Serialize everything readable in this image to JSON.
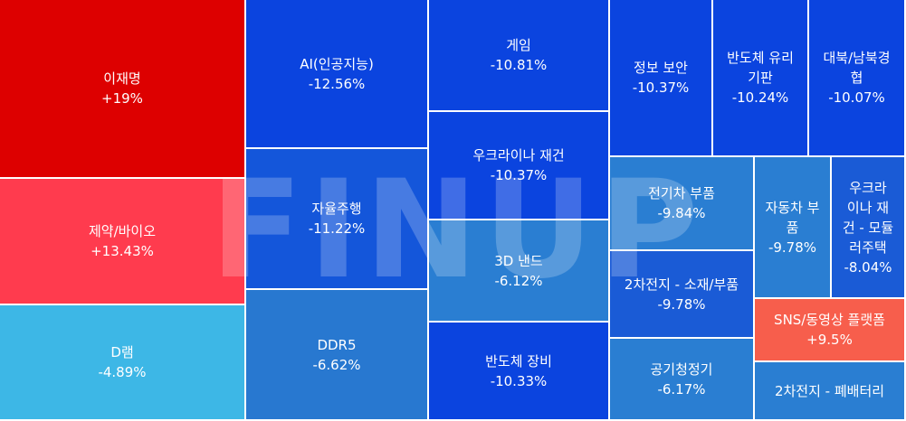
{
  "brand": {
    "watermark": "FINUP"
  },
  "chart_data": {
    "type": "treemap",
    "items": [
      {
        "label": "이재명",
        "change": "+19%",
        "color": "#dd0000"
      },
      {
        "label": "제약/바이오",
        "change": "+13.43%",
        "color": "#ff3b4e"
      },
      {
        "label": "D램",
        "change": "-4.89%",
        "color": "#3db7e6"
      },
      {
        "label": "AI(인공지능)",
        "change": "-12.56%",
        "color": "#0b44df"
      },
      {
        "label": "자율주행",
        "change": "-11.22%",
        "color": "#1456da"
      },
      {
        "label": "DDR5",
        "change": "-6.62%",
        "color": "#2878d0"
      },
      {
        "label": "게임",
        "change": "-10.81%",
        "color": "#0b44df"
      },
      {
        "label": "우크라이나 재건",
        "change": "-10.37%",
        "color": "#0b44df"
      },
      {
        "label": "3D 낸드",
        "change": "-6.12%",
        "color": "#2a7ed2"
      },
      {
        "label": "반도체 장비",
        "change": "-10.33%",
        "color": "#0b44df"
      },
      {
        "label": "정보 보안",
        "change": "-10.37%",
        "color": "#0b44df"
      },
      {
        "label": "반도체 유리기판",
        "change": "-10.24%",
        "color": "#0b44df"
      },
      {
        "label": "대북/남북경협",
        "change": "-10.07%",
        "color": "#0b44df"
      },
      {
        "label": "전기차 부품",
        "change": "-9.84%",
        "color": "#2a7ed2"
      },
      {
        "label": "2차전지 - 소재/부품",
        "change": "-9.78%",
        "color": "#1a5bd6"
      },
      {
        "label": "공기청정기",
        "change": "-6.17%",
        "color": "#2a7ed2"
      },
      {
        "label": "자동차 부품",
        "change": "-9.78%",
        "color": "#2a7ed2"
      },
      {
        "label": "우크라이나 재건 - 모듈러주택",
        "change": "-8.04%",
        "color": "#1a5bd6"
      },
      {
        "label": "SNS/동영상 플랫폼",
        "change": "+9.5%",
        "color": "#f75e4c"
      },
      {
        "label": "2차전지 - 폐배터리",
        "change": "",
        "color": "#2a7ed2"
      }
    ]
  }
}
